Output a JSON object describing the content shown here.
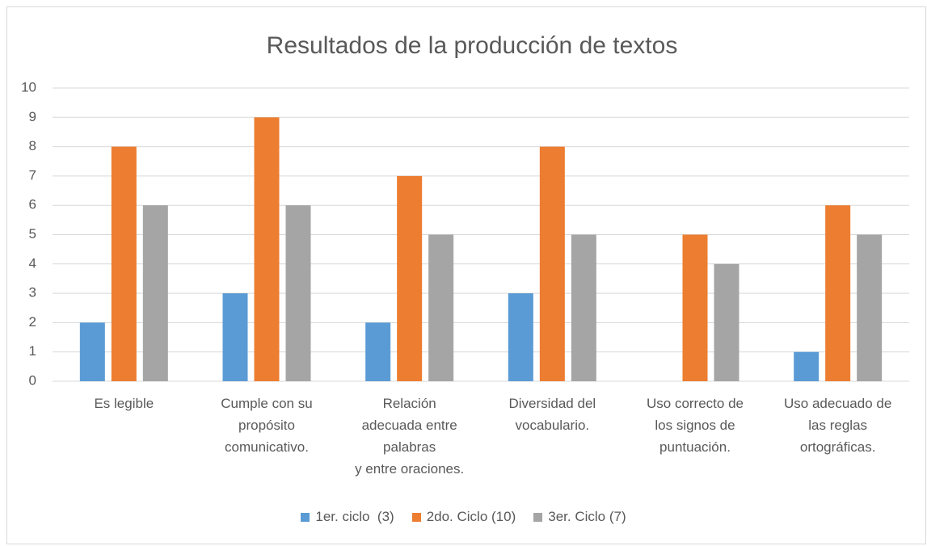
{
  "chart_data": {
    "type": "bar",
    "title": "Resultados de la producción de textos",
    "categories": [
      "Es legible",
      "Cumple con su\npropósito\ncomunicativo.",
      "Relación\nadecuada entre\npalabras\ny entre oraciones.",
      "Diversidad del\nvocabulario.",
      "Uso correcto de\nlos signos de\npuntuación.",
      "Uso adecuado de\nlas reglas\nortográficas."
    ],
    "series": [
      {
        "name": "1er. ciclo  (3)",
        "color": "#5b9bd5",
        "values": [
          2,
          3,
          2,
          3,
          0,
          1
        ]
      },
      {
        "name": "2do. Ciclo (10)",
        "color": "#ed7d31",
        "values": [
          8,
          9,
          7,
          8,
          5,
          6
        ]
      },
      {
        "name": "3er. Ciclo (7)",
        "color": "#a5a5a5",
        "values": [
          6,
          6,
          5,
          5,
          4,
          5
        ]
      }
    ],
    "ylim": [
      0,
      10
    ],
    "yticks": [
      0,
      1,
      2,
      3,
      4,
      5,
      6,
      7,
      8,
      9,
      10
    ],
    "grid": true,
    "legend": "bottom"
  }
}
